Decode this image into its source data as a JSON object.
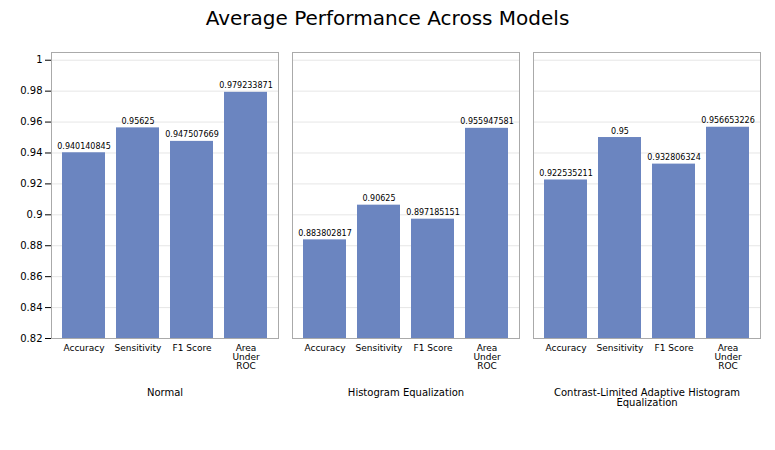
{
  "chart_data": {
    "type": "bar",
    "title": "Average Performance Across Models",
    "color": "#6b85c0",
    "groups": [
      {
        "label": "Normal",
        "categories": [
          "Accuracy",
          "Sensitivity",
          "F1 Score",
          "Area\nUnder\nROC"
        ],
        "values": [
          0.940140845,
          0.95625,
          0.947507669,
          0.979233871
        ]
      },
      {
        "label": "Histogram Equalization",
        "categories": [
          "Accuracy",
          "Sensitivity",
          "F1 Score",
          "Area\nUnder\nROC"
        ],
        "values": [
          0.883802817,
          0.90625,
          0.897185151,
          0.955947581
        ]
      },
      {
        "label": "Contrast-Limited Adaptive Histogram\nEqualization",
        "categories": [
          "Accuracy",
          "Sensitivity",
          "F1 Score",
          "Area\nUnder\nROC"
        ],
        "values": [
          0.922535211,
          0.95,
          0.932806324,
          0.956653226
        ]
      }
    ],
    "ylim": [
      0.82,
      1.005
    ],
    "yticks": [
      0.82,
      0.84,
      0.86,
      0.88,
      0.9,
      0.92,
      0.94,
      0.96,
      0.98,
      1
    ],
    "grid": true,
    "data_labels": true
  }
}
